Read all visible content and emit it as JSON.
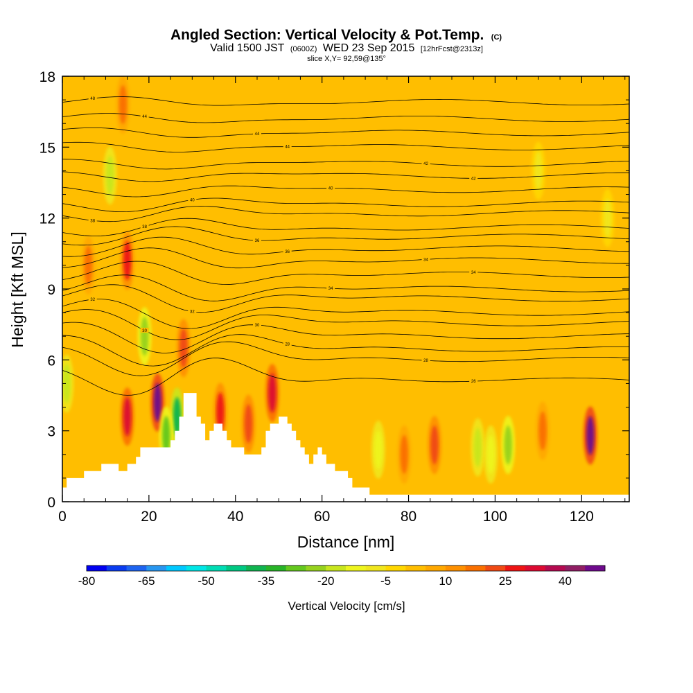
{
  "title": "Angled Section: Vertical Velocity & Pot.Temp.",
  "title_units": "(C)",
  "subtitle_main": "Valid 1500 JST",
  "subtitle_utc": "(0600Z)",
  "subtitle_date": "WED 23 Sep 2015",
  "subtitle_fcst": "[12hrFcst@2313z]",
  "slice_label": "slice X,Y= 92,59@135°",
  "chart_data": {
    "type": "heatmap",
    "xlabel": "Distance [nm]",
    "ylabel": "Height [Kft MSL]",
    "xlim": [
      0,
      131
    ],
    "ylim": [
      0,
      18
    ],
    "x_ticks": [
      0,
      20,
      40,
      60,
      80,
      100,
      120
    ],
    "y_ticks": [
      0,
      3,
      6,
      9,
      12,
      15,
      18
    ],
    "background_value": 0,
    "velocity_features": [
      {
        "x": 15,
        "y": 3.6,
        "value": 30
      },
      {
        "x": 22,
        "y": 4.2,
        "value": 45
      },
      {
        "x": 28,
        "y": 6.5,
        "value": 20
      },
      {
        "x": 36.5,
        "y": 3.8,
        "value": 25
      },
      {
        "x": 43,
        "y": 3.3,
        "value": 20
      },
      {
        "x": 48.5,
        "y": 4.6,
        "value": 30
      },
      {
        "x": 15,
        "y": 10.2,
        "value": 25
      },
      {
        "x": 6,
        "y": 10.0,
        "value": 15
      },
      {
        "x": 14,
        "y": 16.8,
        "value": 15
      },
      {
        "x": 11,
        "y": 13.8,
        "value": -20
      },
      {
        "x": 19,
        "y": 7.0,
        "value": -25
      },
      {
        "x": 26.5,
        "y": 3.6,
        "value": -40
      },
      {
        "x": 24,
        "y": 2.8,
        "value": -30
      },
      {
        "x": 1,
        "y": 5.0,
        "value": -20
      },
      {
        "x": 73,
        "y": 2.2,
        "value": -15
      },
      {
        "x": 79,
        "y": 2.0,
        "value": 15
      },
      {
        "x": 86,
        "y": 2.4,
        "value": 20
      },
      {
        "x": 96,
        "y": 2.3,
        "value": -20
      },
      {
        "x": 99,
        "y": 2.0,
        "value": -15
      },
      {
        "x": 103,
        "y": 2.4,
        "value": -25
      },
      {
        "x": 111,
        "y": 3.0,
        "value": 15
      },
      {
        "x": 122,
        "y": 2.8,
        "value": 45
      },
      {
        "x": 126,
        "y": 12.0,
        "value": -10
      },
      {
        "x": 110,
        "y": 14.0,
        "value": -10
      }
    ],
    "terrain": [
      [
        0,
        0.6
      ],
      [
        1,
        0.6
      ],
      [
        1,
        1.0
      ],
      [
        5,
        1.0
      ],
      [
        5,
        1.3
      ],
      [
        9,
        1.3
      ],
      [
        9,
        1.6
      ],
      [
        13,
        1.6
      ],
      [
        13,
        1.3
      ],
      [
        15,
        1.3
      ],
      [
        15,
        1.6
      ],
      [
        17,
        1.6
      ],
      [
        17,
        1.9
      ],
      [
        18,
        1.9
      ],
      [
        18,
        2.3
      ],
      [
        25,
        2.3
      ],
      [
        25,
        2.6
      ],
      [
        26,
        2.6
      ],
      [
        26,
        3.0
      ],
      [
        27,
        3.0
      ],
      [
        27,
        3.6
      ],
      [
        28,
        3.6
      ],
      [
        28,
        4.6
      ],
      [
        31,
        4.6
      ],
      [
        31,
        3.6
      ],
      [
        32,
        3.6
      ],
      [
        32,
        3.3
      ],
      [
        33,
        3.3
      ],
      [
        33,
        2.6
      ],
      [
        34,
        2.6
      ],
      [
        34,
        3.0
      ],
      [
        35,
        3.0
      ],
      [
        35,
        3.3
      ],
      [
        37,
        3.3
      ],
      [
        37,
        3.0
      ],
      [
        38,
        3.0
      ],
      [
        38,
        2.6
      ],
      [
        39,
        2.6
      ],
      [
        39,
        2.3
      ],
      [
        42,
        2.3
      ],
      [
        42,
        2.0
      ],
      [
        46,
        2.0
      ],
      [
        46,
        2.3
      ],
      [
        47,
        2.3
      ],
      [
        47,
        3.0
      ],
      [
        48,
        3.0
      ],
      [
        48,
        3.3
      ],
      [
        50,
        3.3
      ],
      [
        50,
        3.6
      ],
      [
        52,
        3.6
      ],
      [
        52,
        3.3
      ],
      [
        53,
        3.3
      ],
      [
        53,
        3.0
      ],
      [
        54,
        3.0
      ],
      [
        54,
        2.6
      ],
      [
        55,
        2.6
      ],
      [
        55,
        2.3
      ],
      [
        56,
        2.3
      ],
      [
        56,
        2.0
      ],
      [
        57,
        2.0
      ],
      [
        57,
        1.6
      ],
      [
        58,
        1.6
      ],
      [
        58,
        2.0
      ],
      [
        59,
        2.0
      ],
      [
        59,
        2.3
      ],
      [
        60,
        2.3
      ],
      [
        60,
        2.0
      ],
      [
        61,
        2.0
      ],
      [
        61,
        1.6
      ],
      [
        63,
        1.6
      ],
      [
        63,
        1.3
      ],
      [
        66,
        1.3
      ],
      [
        66,
        1.0
      ],
      [
        67,
        1.0
      ],
      [
        67,
        0.6
      ],
      [
        71,
        0.6
      ],
      [
        71,
        0.3
      ],
      [
        131,
        0.3
      ]
    ],
    "theta_levels": [
      {
        "label": "48",
        "y": 16.9
      },
      {
        "label": "44",
        "y": 16.2
      },
      {
        "label": "44",
        "y": 15.6
      },
      {
        "label": "44",
        "y": 15.0
      },
      {
        "label": "42",
        "y": 14.3
      },
      {
        "label": "42",
        "y": 13.8
      },
      {
        "label": "40",
        "y": 13.2
      },
      {
        "label": "40",
        "y": 12.6
      },
      {
        "label": "38",
        "y": 12.2
      },
      {
        "label": "38",
        "y": 11.6
      },
      {
        "label": "36",
        "y": 11.2
      },
      {
        "label": "36",
        "y": 10.7
      },
      {
        "label": "34",
        "y": 10.2
      },
      {
        "label": "34",
        "y": 9.6
      },
      {
        "label": "34",
        "y": 9.0
      },
      {
        "label": "32",
        "y": 8.6
      },
      {
        "label": "32",
        "y": 8.0
      },
      {
        "label": "30",
        "y": 7.6
      },
      {
        "label": "30",
        "y": 7.1
      },
      {
        "label": "28",
        "y": 6.6
      },
      {
        "label": "28",
        "y": 6.2
      },
      {
        "label": "26",
        "y": 5.4
      }
    ],
    "colorbar": {
      "label": "Vertical Velocity [cm/s]",
      "tick_labels": [
        "-80",
        "-65",
        "-50",
        "-35",
        "-20",
        "-5",
        "10",
        "25",
        "40"
      ],
      "tick_values": [
        -80,
        -65,
        -50,
        -35,
        -20,
        -5,
        10,
        25,
        40
      ],
      "bins": [
        -80,
        -75,
        -70,
        -65,
        -60,
        -55,
        -50,
        -45,
        -40,
        -35,
        -30,
        -25,
        -20,
        -15,
        -10,
        -5,
        0,
        5,
        10,
        15,
        20,
        25,
        30,
        35,
        40,
        45
      ],
      "colors": [
        "#0000f0",
        "#0a3cf0",
        "#1e64f0",
        "#2896f0",
        "#00c8ff",
        "#00e6e6",
        "#00dcb4",
        "#00c882",
        "#10b450",
        "#28b428",
        "#64c81e",
        "#96d21e",
        "#c8e61e",
        "#eef51e",
        "#f0e61e",
        "#ffd700",
        "#ffbe00",
        "#ffa800",
        "#fe9000",
        "#fa7000",
        "#f04a14",
        "#ee1414",
        "#dc0a32",
        "#b40a50",
        "#901e64",
        "#6e0a8c"
      ]
    }
  }
}
